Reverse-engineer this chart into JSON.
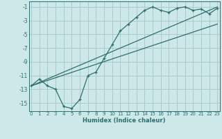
{
  "x_data": [
    0,
    1,
    2,
    3,
    4,
    5,
    6,
    7,
    8,
    9,
    10,
    11,
    12,
    13,
    14,
    15,
    16,
    17,
    18,
    19,
    20,
    21,
    22,
    23
  ],
  "y_humidex": [
    -12.5,
    -11.5,
    -12.5,
    -13.0,
    -15.5,
    -15.8,
    -14.5,
    -11.0,
    -10.5,
    -8.5,
    -6.5,
    -4.5,
    -3.5,
    -2.5,
    -1.5,
    -1.0,
    -1.5,
    -1.8,
    -1.2,
    -1.0,
    -1.5,
    -1.3,
    -2.0,
    -1.2
  ],
  "line1_x": [
    0,
    23
  ],
  "line1_y": [
    -12.5,
    -1.0
  ],
  "line2_x": [
    0,
    23
  ],
  "line2_y": [
    -12.5,
    -3.5
  ],
  "color": "#2e6e6e",
  "bg_color": "#cce8e8",
  "grid_color": "#aacaca",
  "xlabel": "Humidex (Indice chaleur)",
  "yticks": [
    -1,
    -3,
    -5,
    -7,
    -9,
    -11,
    -13,
    -15
  ],
  "xticks": [
    0,
    1,
    2,
    3,
    4,
    5,
    6,
    7,
    8,
    9,
    10,
    11,
    12,
    13,
    14,
    15,
    16,
    17,
    18,
    19,
    20,
    21,
    22,
    23
  ],
  "xlim": [
    -0.3,
    23.3
  ],
  "ylim": [
    -16.2,
    -0.2
  ]
}
